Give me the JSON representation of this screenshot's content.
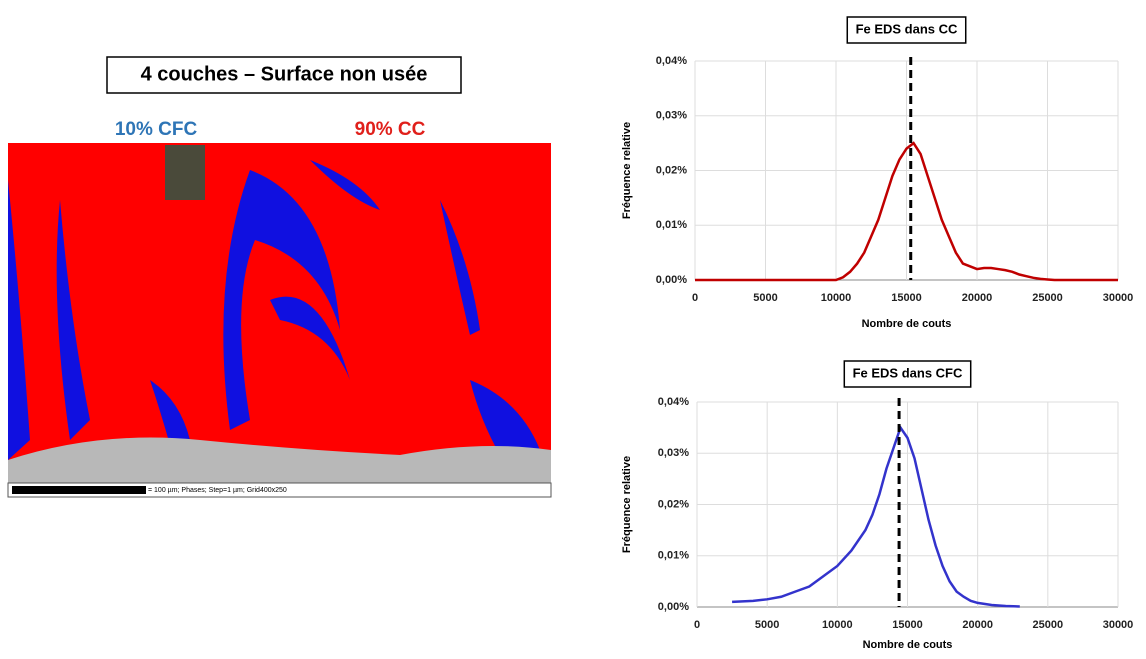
{
  "slide": {
    "title": "4 couches – Surface non usée",
    "labels": [
      "10% CFC",
      "90% CC"
    ],
    "scale_text": "= 100 µm; Phases; Step=1 µm; Grid400x250"
  },
  "chart_data": [
    {
      "type": "line",
      "title": "Fe EDS dans CC",
      "xlabel": "Nombre de couts",
      "ylabel": "Fréquence relative",
      "x": [
        0,
        9500,
        10000,
        10500,
        11000,
        11500,
        12000,
        12500,
        13000,
        13500,
        14000,
        14500,
        15000,
        15500,
        16000,
        16500,
        17000,
        17500,
        18000,
        18500,
        19000,
        19500,
        20000,
        20500,
        21000,
        21500,
        22000,
        22500,
        23000,
        23500,
        24000,
        24500,
        25000,
        25500,
        26000,
        30000
      ],
      "series": [
        {
          "color": "#c00000",
          "values": [
            0,
            0,
            0,
            0.0005,
            0.0015,
            0.003,
            0.005,
            0.008,
            0.011,
            0.015,
            0.019,
            0.022,
            0.024,
            0.025,
            0.023,
            0.019,
            0.015,
            0.011,
            0.008,
            0.005,
            0.003,
            0.0025,
            0.002,
            0.0022,
            0.0022,
            0.002,
            0.0018,
            0.0015,
            0.001,
            0.0007,
            0.0004,
            0.0002,
            0.0001,
            0,
            0,
            0
          ]
        }
      ],
      "vline": 15300,
      "xlim": [
        0,
        30000
      ],
      "xticks": [
        0,
        5000,
        10000,
        15000,
        20000,
        25000,
        30000
      ],
      "ylim": [
        0,
        0.04
      ],
      "yticks": [
        {
          "value": 0,
          "label": "0,00%"
        },
        {
          "value": 0.01,
          "label": "0,01%"
        },
        {
          "value": 0.02,
          "label": "0,02%"
        },
        {
          "value": 0.03,
          "label": "0,03%"
        },
        {
          "value": 0.04,
          "label": "0,04%"
        }
      ],
      "grid": true
    },
    {
      "type": "line",
      "title": "Fe EDS dans CFC",
      "xlabel": "Nombre de couts",
      "ylabel": "Fréquence relative",
      "x": [
        2500,
        4000,
        5000,
        6000,
        7000,
        8000,
        9000,
        10000,
        11000,
        12000,
        12500,
        13000,
        13500,
        14000,
        14500,
        15000,
        15500,
        16000,
        16500,
        17000,
        17500,
        18000,
        18500,
        19000,
        19500,
        20000,
        21000,
        22000,
        23000
      ],
      "series": [
        {
          "color": "#3333cc",
          "values": [
            0.001,
            0.0012,
            0.0015,
            0.002,
            0.003,
            0.004,
            0.006,
            0.008,
            0.011,
            0.015,
            0.018,
            0.022,
            0.027,
            0.031,
            0.035,
            0.033,
            0.029,
            0.023,
            0.017,
            0.012,
            0.008,
            0.005,
            0.003,
            0.002,
            0.0012,
            0.0008,
            0.0004,
            0.0002,
            0.0001
          ]
        }
      ],
      "vline": 14400,
      "xlim": [
        0,
        30000
      ],
      "xticks": [
        0,
        5000,
        10000,
        15000,
        20000,
        25000,
        30000
      ],
      "ylim": [
        0,
        0.04
      ],
      "yticks": [
        {
          "value": 0,
          "label": "0,00%"
        },
        {
          "value": 0.01,
          "label": "0,01%"
        },
        {
          "value": 0.02,
          "label": "0,02%"
        },
        {
          "value": 0.03,
          "label": "0,03%"
        },
        {
          "value": 0.04,
          "label": "0,04%"
        }
      ],
      "grid": true
    }
  ]
}
